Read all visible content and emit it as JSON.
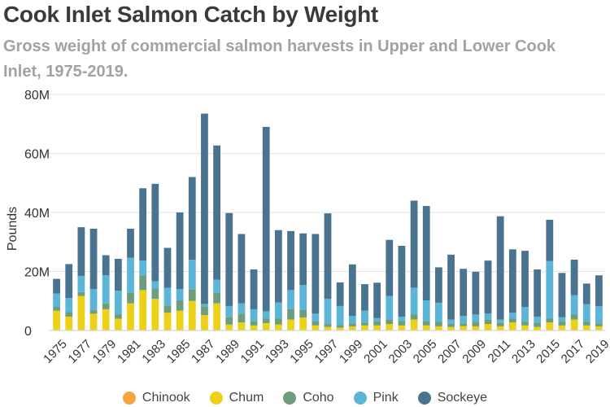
{
  "chart_data": {
    "type": "bar",
    "stacked": true,
    "title": "Cook Inlet Salmon Catch by Weight",
    "subtitle": "Gross weight of commercial salmon harvests in Upper and Lower Cook Inlet, 1975-2019.",
    "ylabel": "Pounds",
    "xlabel": "",
    "ylim": [
      0,
      80000000
    ],
    "y_ticks": [
      {
        "value": 0,
        "label": "0"
      },
      {
        "value": 20000000,
        "label": "20M"
      },
      {
        "value": 40000000,
        "label": "40M"
      },
      {
        "value": 60000000,
        "label": "60M"
      },
      {
        "value": 80000000,
        "label": "80M"
      }
    ],
    "grid": true,
    "legend_position": "bottom",
    "categories": [
      1975,
      1976,
      1977,
      1978,
      1979,
      1980,
      1981,
      1982,
      1983,
      1984,
      1985,
      1986,
      1987,
      1988,
      1989,
      1990,
      1991,
      1992,
      1993,
      1994,
      1995,
      1996,
      1997,
      1998,
      1999,
      2000,
      2001,
      2002,
      2003,
      2004,
      2005,
      2006,
      2007,
      2008,
      2009,
      2010,
      2011,
      2012,
      2013,
      2014,
      2015,
      2016,
      2017,
      2018,
      2019
    ],
    "x_tick_labels": [
      "1975",
      "1977",
      "1979",
      "1981",
      "1983",
      "1985",
      "1987",
      "1989",
      "1991",
      "1993",
      "1995",
      "1997",
      "1999",
      "2001",
      "2003",
      "2005",
      "2007",
      "2009",
      "2011",
      "2013",
      "2015",
      "2017",
      "2019"
    ],
    "series": [
      {
        "name": "Chinook",
        "color": "#f6a43a",
        "values": [
          0.2,
          0.2,
          0.2,
          0.2,
          0.2,
          0.2,
          0.2,
          0.2,
          0.2,
          0.2,
          0.2,
          0.2,
          0.2,
          0.2,
          0.2,
          0.2,
          0.2,
          0.2,
          0.2,
          0.2,
          0.2,
          0.2,
          0.2,
          0.2,
          0.2,
          0.2,
          0.2,
          0.2,
          0.2,
          0.2,
          0.2,
          0.2,
          0.2,
          0.2,
          0.2,
          0.2,
          0.2,
          0.2,
          0.2,
          0.2,
          0.2,
          0.2,
          0.2,
          0.2,
          0.2
        ]
      },
      {
        "name": "Chum",
        "color": "#edd118",
        "values": [
          6.5,
          4.5,
          11.5,
          5.5,
          7.0,
          3.8,
          9.0,
          13.5,
          10.5,
          5.8,
          6.5,
          9.8,
          5.0,
          9.0,
          1.8,
          2.5,
          1.5,
          2.3,
          1.8,
          3.5,
          4.2,
          1.5,
          1.0,
          0.8,
          1.2,
          1.5,
          1.5,
          2.0,
          1.5,
          3.5,
          1.5,
          1.2,
          1.0,
          1.3,
          1.2,
          2.0,
          1.2,
          2.5,
          1.5,
          1.0,
          2.5,
          1.5,
          3.5,
          1.5,
          1.2
        ]
      },
      {
        "name": "Coho",
        "color": "#6e9d7e",
        "values": [
          1.3,
          1.5,
          1.3,
          1.3,
          2.0,
          1.5,
          3.5,
          5.0,
          3.5,
          2.5,
          3.5,
          4.0,
          3.0,
          3.5,
          2.5,
          3.0,
          1.5,
          1.5,
          2.0,
          3.5,
          2.5,
          1.5,
          1.0,
          0.8,
          1.0,
          1.0,
          1.5,
          1.5,
          1.5,
          1.8,
          1.5,
          1.5,
          1.0,
          0.9,
          1.5,
          1.5,
          1.3,
          1.3,
          1.3,
          1.5,
          1.3,
          1.3,
          1.8,
          1.2,
          0.8
        ]
      },
      {
        "name": "Pink",
        "color": "#5bb5d6",
        "values": [
          4.5,
          4.8,
          5.5,
          7.0,
          9.5,
          8.0,
          12.0,
          5.0,
          2.5,
          6.0,
          3.8,
          10.0,
          0.8,
          4.5,
          3.8,
          3.5,
          4.0,
          2.5,
          5.5,
          6.5,
          8.5,
          2.5,
          8.5,
          6.5,
          2.5,
          4.0,
          1.0,
          8.0,
          1.5,
          9.0,
          7.0,
          6.5,
          1.5,
          2.5,
          2.5,
          2.0,
          1.0,
          2.0,
          5.0,
          2.0,
          19.5,
          1.5,
          6.5,
          6.0,
          6.0
        ]
      },
      {
        "name": "Sockeye",
        "color": "#4a7390",
        "values": [
          5.0,
          11.5,
          16.5,
          20.5,
          6.8,
          10.8,
          9.8,
          24.5,
          33.0,
          13.5,
          26.0,
          28.0,
          64.5,
          45.5,
          31.5,
          23.5,
          13.5,
          62.5,
          24.5,
          20.0,
          17.5,
          27.0,
          29.0,
          8.0,
          17.5,
          9.0,
          12.0,
          19.0,
          24.0,
          29.5,
          32.0,
          12.0,
          22.0,
          16.0,
          14.5,
          18.0,
          35.0,
          21.5,
          19.0,
          16.0,
          14.0,
          15.0,
          12.0,
          7.0,
          10.5
        ]
      }
    ],
    "value_units": "million pounds"
  }
}
